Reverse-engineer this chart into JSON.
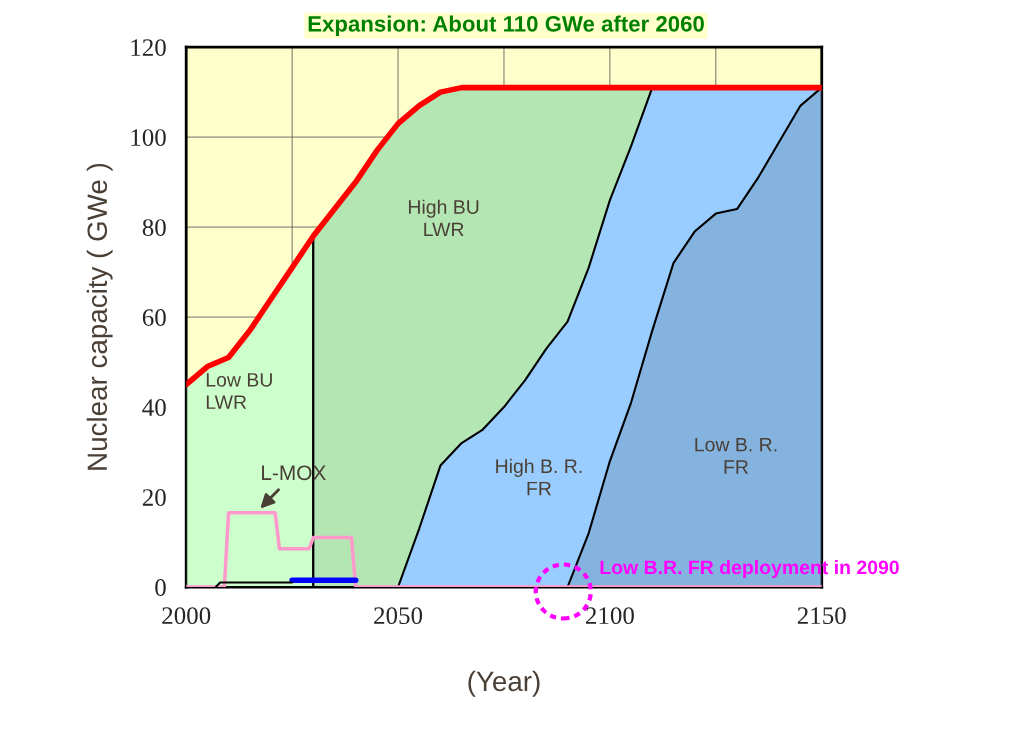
{
  "chart_data": {
    "type": "area",
    "title": "Expansion: About 110 GWe after 2060",
    "xlabel": "(Year)",
    "ylabel": "Nuclear capacity ( GWe )",
    "series": [
      {
        "color": "#ccffcc",
        "x": [
          2000,
          2005,
          2010,
          2015,
          2020,
          2025,
          2030
        ],
        "values": [
          45,
          49,
          51,
          57,
          64,
          71,
          78
        ]
      },
      {
        "color": "#b3e6b3",
        "x": [
          2030,
          2035,
          2040,
          2045,
          2050,
          2055,
          2060,
          2065,
          2150
        ],
        "values": [
          78,
          84,
          90,
          97,
          103,
          107,
          110,
          111,
          111
        ]
      },
      {
        "color": "#99ccff",
        "x": [
          2050,
          2055,
          2060,
          2065,
          2070,
          2075,
          2080,
          2085,
          2090,
          2095,
          2100,
          2105,
          2110,
          2150
        ],
        "values": [
          0,
          13,
          27,
          32,
          35,
          40,
          46,
          53,
          59,
          71,
          86,
          98,
          111,
          111
        ]
      },
      {
        "color": "#85b3e0",
        "x": [
          2090,
          2095,
          2100,
          2105,
          2110,
          2115,
          2120,
          2125,
          2130,
          2135,
          2140,
          2145,
          2150
        ],
        "values": [
          0,
          12,
          28,
          41,
          57,
          72,
          79,
          83,
          84,
          91,
          99,
          107,
          111
        ]
      },
      {
        "type": "line",
        "color": "#ff0000",
        "x": [
          2000,
          2005,
          2010,
          2015,
          2020,
          2025,
          2030,
          2035,
          2040,
          2045,
          2050,
          2055,
          2060,
          2065,
          2070,
          2150
        ],
        "values": [
          45,
          49,
          51,
          57,
          64,
          71,
          78,
          84,
          90,
          97,
          103,
          107,
          110,
          111,
          111,
          111
        ]
      },
      {
        "type": "line",
        "color": "#ff99cc",
        "x": [
          2000,
          2009,
          2010,
          2021,
          2022,
          2029,
          2030,
          2039,
          2040,
          2150
        ],
        "values": [
          0,
          0,
          16.5,
          16.5,
          8.5,
          8.5,
          11,
          11,
          0,
          0
        ]
      },
      {
        "type": "line",
        "color": "#000000",
        "x": [
          2007,
          2008,
          2025
        ],
        "values": [
          0,
          1,
          1
        ]
      },
      {
        "type": "line",
        "color": "#0000ff",
        "x": [
          2025,
          2040
        ],
        "values": [
          1.5,
          1.5
        ]
      }
    ],
    "annotations": [
      "Low BU\nLWR",
      "High BU\nLWR",
      "High B. R.\nFR",
      "Low B. R.\nFR",
      {
        "text": "L-MOX",
        "x": 2017,
        "y": 17
      },
      {
        "text": "Low B.R. FR deployment in 2090",
        "x": 2090,
        "y": 0
      }
    ],
    "xlim": [
      2000,
      2150
    ],
    "ylim": [
      0,
      120
    ],
    "xticks": [
      2000,
      {
        "value": 2025,
        "label": null
      },
      2050,
      {
        "value": 2075,
        "label": null
      },
      2100,
      {
        "value": 2125,
        "label": null
      },
      2150
    ],
    "yticks": [
      0,
      20,
      40,
      60,
      80,
      100,
      120
    ],
    "bands": [
      {
        "axis": "x",
        "from": 2000,
        "to": 2150,
        "color": "#ffffcc"
      }
    ],
    "grid": true
  }
}
